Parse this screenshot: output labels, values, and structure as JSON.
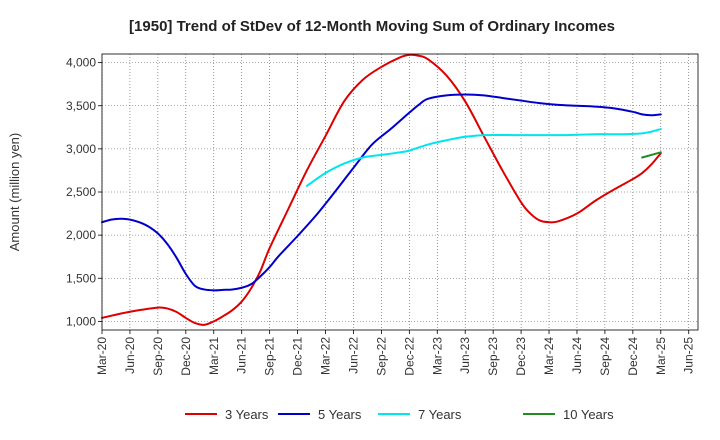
{
  "chart_data": {
    "type": "line",
    "title": "[1950]  Trend of StDev of 12-Month Moving Sum of Ordinary Incomes",
    "xlabel": "",
    "ylabel": "Amount (million yen)",
    "ylim": [
      900,
      4100
    ],
    "yticks": [
      1000,
      1500,
      2000,
      2500,
      3000,
      3500,
      4000
    ],
    "ytick_labels": [
      "1,000",
      "1,500",
      "2,000",
      "2,500",
      "3,000",
      "3,500",
      "4,000"
    ],
    "xlim": [
      2020.167,
      2025.5
    ],
    "xticks": [
      2020.167,
      2020.417,
      2020.667,
      2020.917,
      2021.167,
      2021.417,
      2021.667,
      2021.917,
      2022.167,
      2022.417,
      2022.667,
      2022.917,
      2023.167,
      2023.417,
      2023.667,
      2023.917,
      2024.167,
      2024.417,
      2024.667,
      2024.917,
      2025.167,
      2025.417
    ],
    "xtick_labels": [
      "Mar-20",
      "Jun-20",
      "Sep-20",
      "Dec-20",
      "Mar-21",
      "Jun-21",
      "Sep-21",
      "Dec-21",
      "Mar-22",
      "Jun-22",
      "Sep-22",
      "Dec-22",
      "Mar-23",
      "Jun-23",
      "Sep-23",
      "Dec-23",
      "Mar-24",
      "Jun-24",
      "Sep-24",
      "Dec-24",
      "Mar-25",
      "Jun-25"
    ],
    "grid": true,
    "legend_position": "bottom",
    "series": [
      {
        "name": "3 Years",
        "color": "#dd0000",
        "x": [
          2020.167,
          2020.333,
          2020.5,
          2020.667,
          2020.75,
          2020.833,
          2020.917,
          2021.0,
          2021.083,
          2021.167,
          2021.25,
          2021.333,
          2021.417,
          2021.5,
          2021.583,
          2021.667,
          2021.833,
          2022.0,
          2022.167,
          2022.333,
          2022.5,
          2022.667,
          2022.833,
          2022.917,
          2023.0,
          2023.083,
          2023.25,
          2023.417,
          2023.583,
          2023.75,
          2023.917,
          2024.0,
          2024.083,
          2024.167,
          2024.25,
          2024.417,
          2024.583,
          2024.75,
          2024.917,
          2025.0,
          2025.083,
          2025.167
        ],
        "values": [
          1040,
          1090,
          1130,
          1160,
          1150,
          1110,
          1040,
          980,
          960,
          1000,
          1060,
          1130,
          1230,
          1380,
          1580,
          1850,
          2300,
          2750,
          3150,
          3550,
          3800,
          3950,
          4060,
          4090,
          4080,
          4040,
          3850,
          3550,
          3150,
          2750,
          2380,
          2250,
          2170,
          2150,
          2160,
          2250,
          2400,
          2530,
          2650,
          2720,
          2820,
          2950
        ]
      },
      {
        "name": "5 Years",
        "color": "#0000cc",
        "x": [
          2020.167,
          2020.25,
          2020.333,
          2020.417,
          2020.5,
          2020.583,
          2020.667,
          2020.75,
          2020.833,
          2020.917,
          2021.0,
          2021.083,
          2021.167,
          2021.25,
          2021.333,
          2021.417,
          2021.5,
          2021.583,
          2021.667,
          2021.75,
          2021.917,
          2022.083,
          2022.25,
          2022.417,
          2022.583,
          2022.75,
          2022.917,
          2023.0,
          2023.083,
          2023.25,
          2023.417,
          2023.583,
          2023.75,
          2023.917,
          2024.083,
          2024.25,
          2024.417,
          2024.583,
          2024.75,
          2024.917,
          2025.0,
          2025.083,
          2025.167
        ],
        "values": [
          2150,
          2180,
          2190,
          2180,
          2150,
          2100,
          2020,
          1900,
          1740,
          1550,
          1410,
          1370,
          1360,
          1365,
          1370,
          1390,
          1430,
          1520,
          1630,
          1760,
          1990,
          2230,
          2500,
          2780,
          3050,
          3230,
          3420,
          3510,
          3580,
          3620,
          3630,
          3620,
          3590,
          3560,
          3530,
          3510,
          3500,
          3490,
          3470,
          3430,
          3400,
          3390,
          3400
        ]
      },
      {
        "name": "7 Years",
        "color": "#00e5ee",
        "x": [
          2022.0,
          2022.167,
          2022.333,
          2022.5,
          2022.667,
          2022.833,
          2022.917,
          2023.083,
          2023.25,
          2023.417,
          2023.583,
          2023.833,
          2024.083,
          2024.333,
          2024.583,
          2024.833,
          2025.0,
          2025.083,
          2025.167
        ],
        "values": [
          2570,
          2720,
          2830,
          2900,
          2930,
          2960,
          2980,
          3050,
          3100,
          3140,
          3160,
          3160,
          3160,
          3160,
          3170,
          3170,
          3180,
          3200,
          3230
        ]
      },
      {
        "name": "10 Years",
        "color": "#228b22",
        "x": [
          2025.0,
          2025.083,
          2025.167
        ],
        "values": [
          2900,
          2930,
          2960
        ]
      }
    ]
  }
}
